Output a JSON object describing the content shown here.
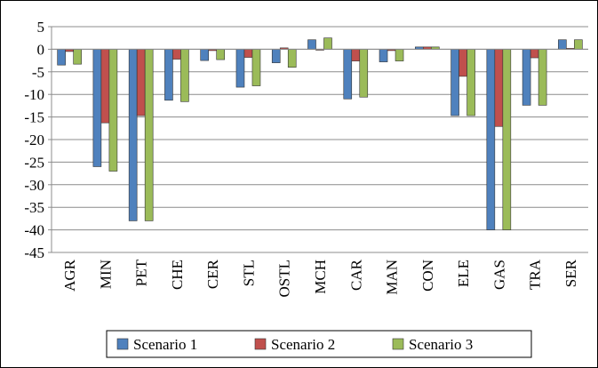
{
  "chart_data": {
    "type": "bar",
    "categories": [
      "AGR",
      "MIN",
      "PET",
      "CHE",
      "CER",
      "STL",
      "OSTL",
      "MCH",
      "CAR",
      "MAN",
      "CON",
      "ELE",
      "GAS",
      "TRA",
      "SER"
    ],
    "series": [
      {
        "name": "Scenario 1",
        "color": "#4f81bd",
        "values": [
          -3.5,
          -26,
          -38,
          -11.3,
          -2.5,
          -8.4,
          -3,
          2.1,
          -11,
          -2.8,
          0.5,
          -14.7,
          -40,
          -12.4,
          2.1
        ]
      },
      {
        "name": "Scenario 2",
        "color": "#c0504d",
        "values": [
          -0.5,
          -16.3,
          -14.7,
          -2.2,
          -0.3,
          -1.8,
          0.3,
          -0.2,
          -2.6,
          -0.3,
          0.5,
          -6,
          -17.1,
          -1.9,
          0.2
        ]
      },
      {
        "name": "Scenario 3",
        "color": "#9bbb59",
        "values": [
          -3.3,
          -27,
          -38,
          -11.6,
          -2.3,
          -8.1,
          -4,
          2.5,
          -10.6,
          -2.6,
          0.5,
          -14.7,
          -40,
          -12.4,
          2.1
        ]
      }
    ],
    "ylim": [
      -45,
      5
    ],
    "yticks": [
      5,
      0,
      -5,
      -10,
      -15,
      -20,
      -25,
      -30,
      -35,
      -40,
      -45
    ],
    "grid": true,
    "legend": "bottom"
  }
}
